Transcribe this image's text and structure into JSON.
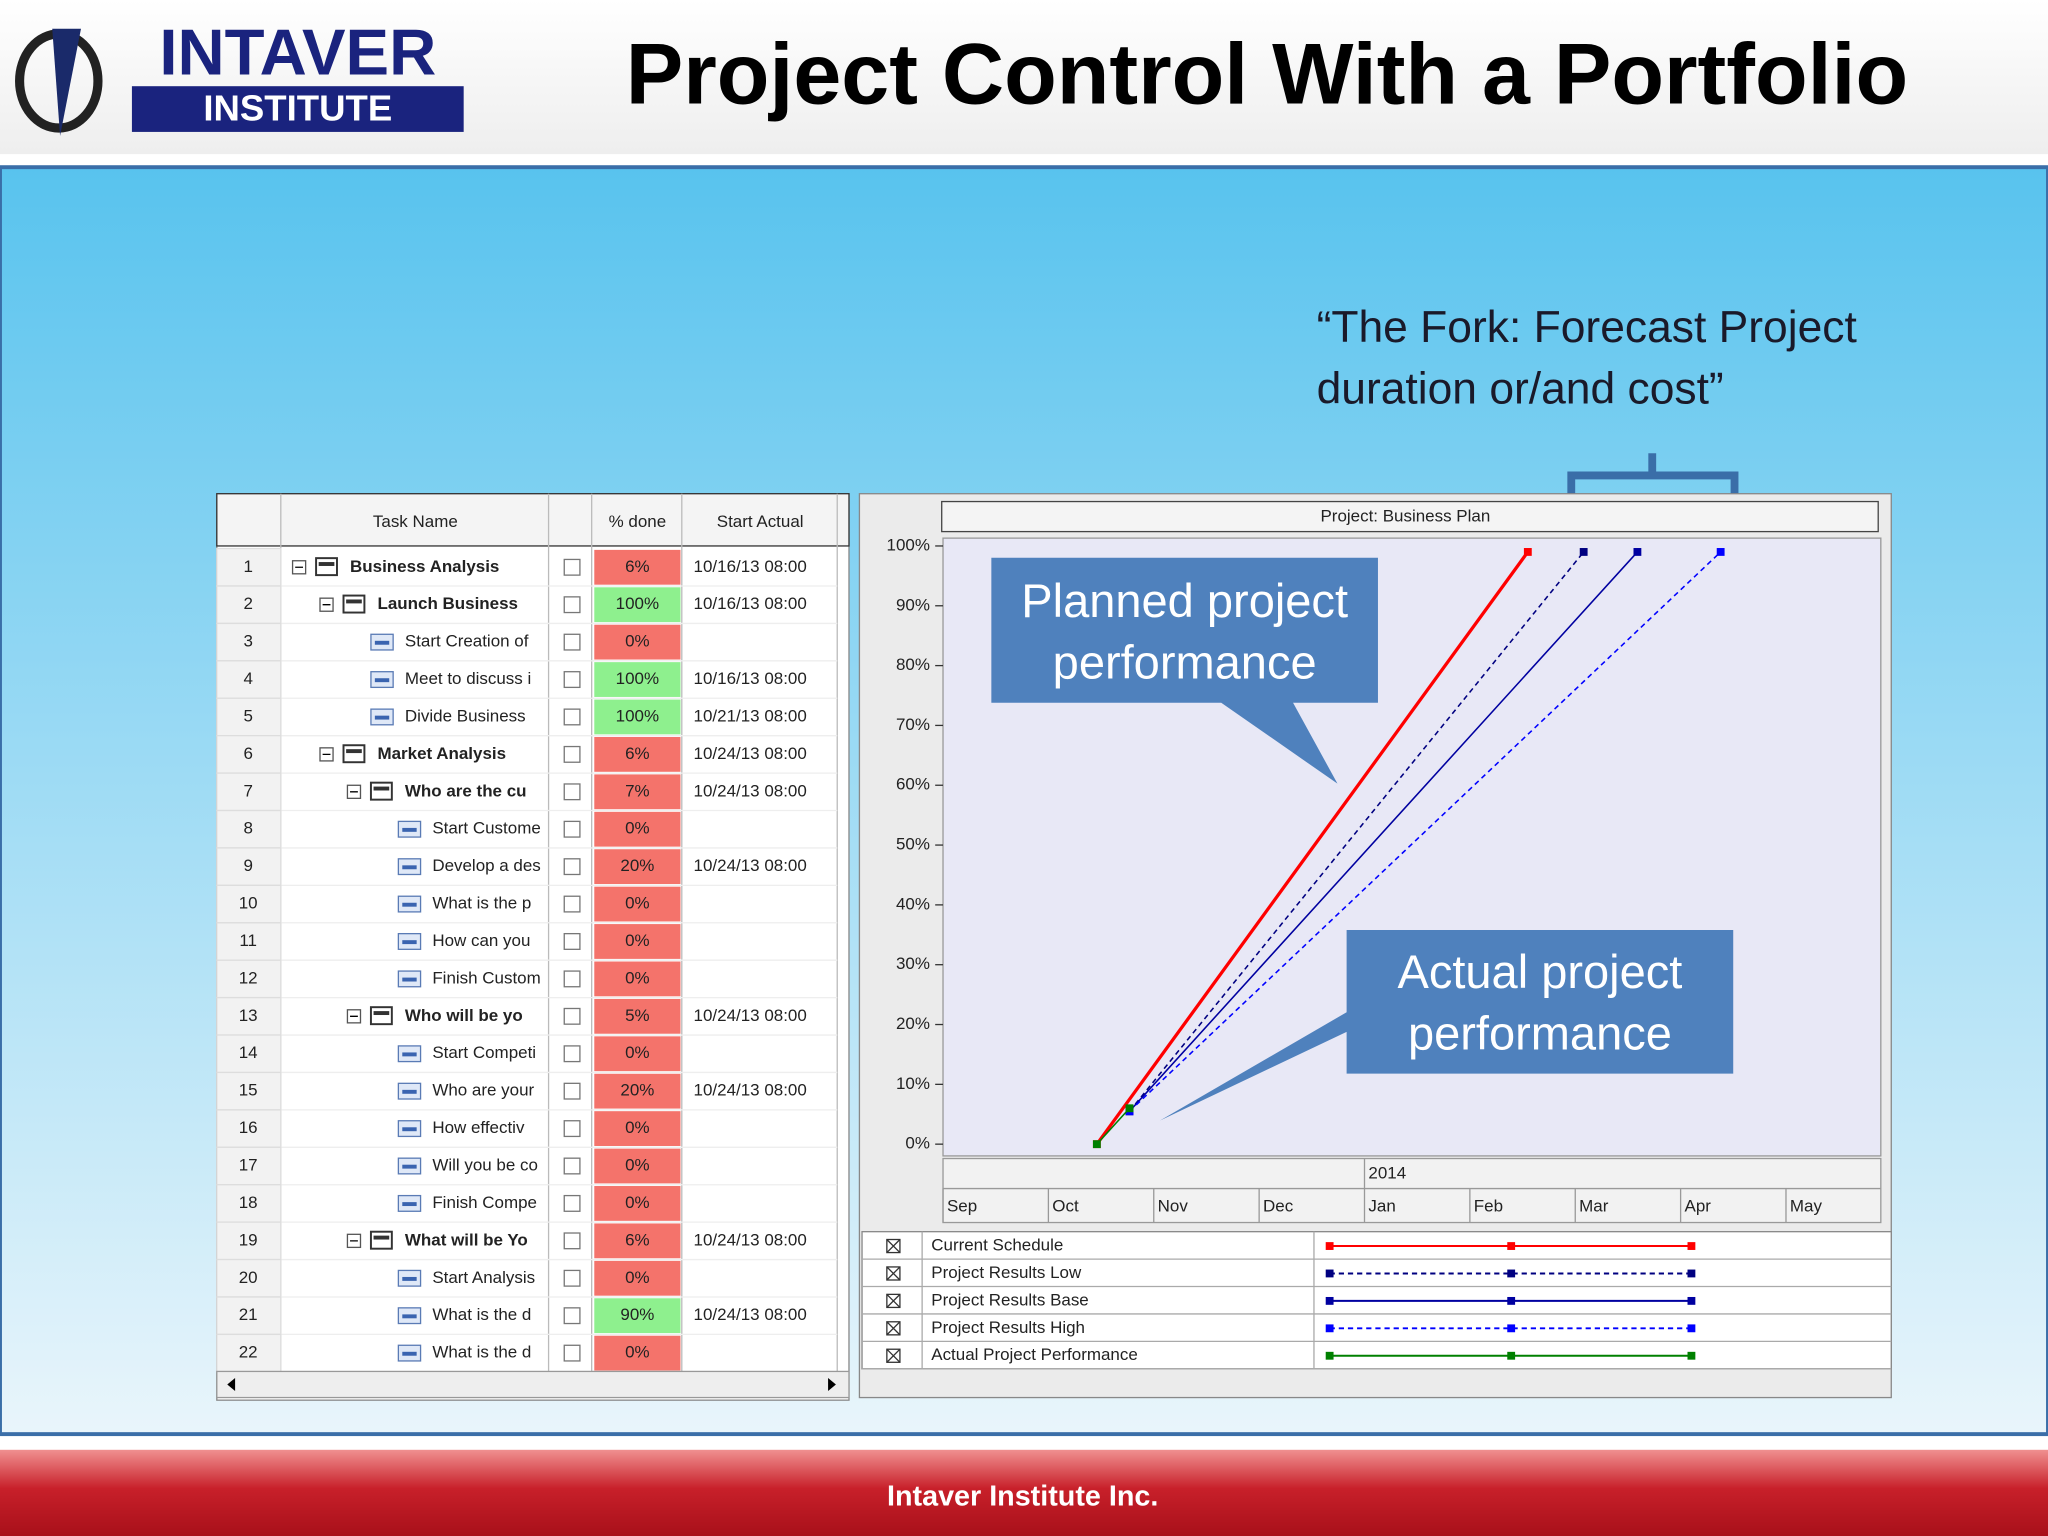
{
  "header": {
    "title": "Project Control With a Portfolio",
    "logo_top": "INTAVER",
    "logo_bottom": "INSTITUTE"
  },
  "quote": [
    "“The Fork: Forecast Project",
    "duration or/and cost”"
  ],
  "table": {
    "columns": [
      "Task Name",
      "% done",
      "Start Actual"
    ],
    "rows": [
      {
        "num": 1,
        "name": "Business Analysis",
        "done": "6%",
        "start": "10/16/13 08:00"
      },
      {
        "num": 2,
        "name": "Launch Business",
        "done": "100%",
        "start": "10/16/13 08:00"
      },
      {
        "num": 3,
        "name": "Start Creation of",
        "done": "0%"
      },
      {
        "num": 4,
        "name": "Meet to discuss i",
        "done": "100%",
        "start": "10/16/13 08:00"
      },
      {
        "num": 5,
        "name": "Divide Business",
        "done": "100%",
        "start": "10/21/13 08:00"
      },
      {
        "num": 6,
        "name": "Market Analysis",
        "done": "6%",
        "start": "10/24/13 08:00"
      },
      {
        "num": 7,
        "name": "Who are the cu",
        "done": "7%",
        "start": "10/24/13 08:00"
      },
      {
        "num": 8,
        "name": "Start Custome",
        "done": "0%"
      },
      {
        "num": 9,
        "name": "Develop a des",
        "done": "20%",
        "start": "10/24/13 08:00"
      },
      {
        "num": 10,
        "name": "What is the p",
        "done": "0%"
      },
      {
        "num": 11,
        "name": "How can you",
        "done": "0%"
      },
      {
        "num": 12,
        "name": "Finish Custom",
        "done": "0%"
      },
      {
        "num": 13,
        "name": "Who will be yo",
        "done": "5%",
        "start": "10/24/13 08:00"
      },
      {
        "num": 14,
        "name": "Start Competi",
        "done": "0%"
      },
      {
        "num": 15,
        "name": "Who are your",
        "done": "20%",
        "start": "10/24/13 08:00"
      },
      {
        "num": 16,
        "name": "How effectiv",
        "done": "0%"
      },
      {
        "num": 17,
        "name": "Will you be co",
        "done": "0%"
      },
      {
        "num": 18,
        "name": "Finish Compe",
        "done": "0%"
      },
      {
        "num": 19,
        "name": "What will be Yo",
        "done": "6%",
        "start": "10/24/13 08:00"
      },
      {
        "num": 20,
        "name": "Start Analysis",
        "done": "0%"
      },
      {
        "num": 21,
        "name": "What is the d",
        "done": "90%",
        "start": "10/24/13 08:00"
      },
      {
        "num": 22,
        "name": "What is the d",
        "done": "0%"
      }
    ]
  },
  "chart_data": {
    "type": "line",
    "title": "Project: Business Plan",
    "xlim": [
      0,
      8.9
    ],
    "xticks": [
      {
        "value": 0,
        "label": "Sep"
      },
      {
        "value": 1,
        "label": "Oct"
      },
      {
        "value": 2,
        "label": "Nov"
      },
      {
        "value": 3,
        "label": "Dec"
      },
      {
        "value": 4,
        "label": "Jan"
      },
      {
        "value": 5,
        "label": "Feb"
      },
      {
        "value": 6,
        "label": "Mar"
      },
      {
        "value": 7,
        "label": "Apr"
      },
      {
        "value": 8,
        "label": "May"
      }
    ],
    "year_label": {
      "value": 4,
      "label": "2014"
    },
    "ylim": [
      0,
      101
    ],
    "yticks": [
      {
        "value": 0,
        "label": "0%"
      },
      {
        "value": 10,
        "label": "10%"
      },
      {
        "value": 20,
        "label": "20%"
      },
      {
        "value": 30,
        "label": "30%"
      },
      {
        "value": 40,
        "label": "40%"
      },
      {
        "value": 50,
        "label": "50%"
      },
      {
        "value": 60,
        "label": "60%"
      },
      {
        "value": 70,
        "label": "70%"
      },
      {
        "value": 80,
        "label": "80%"
      },
      {
        "value": 90,
        "label": "90%"
      },
      {
        "value": 100,
        "label": "100%"
      }
    ],
    "series": [
      {
        "name": "Current Schedule",
        "color": "#ff0000",
        "dashed": false,
        "x": [
          1.46,
          5.55
        ],
        "values": [
          0,
          99
        ]
      },
      {
        "name": "Project Results Low",
        "color": "#000080",
        "dashed": true,
        "x": [
          1.77,
          6.08
        ],
        "values": [
          5.5,
          99
        ]
      },
      {
        "name": "Project Results Base",
        "color": "#0000a0",
        "dashed": false,
        "x": [
          1.77,
          6.59
        ],
        "values": [
          5.5,
          99
        ]
      },
      {
        "name": "Project Results High",
        "color": "#0000ff",
        "dashed": true,
        "x": [
          1.77,
          7.38
        ],
        "values": [
          5.5,
          99
        ]
      },
      {
        "name": "Actual Project Performance",
        "color": "#008000",
        "dashed": false,
        "x": [
          1.46,
          1.77
        ],
        "values": [
          0,
          6
        ]
      }
    ]
  },
  "callouts": {
    "planned": [
      "Planned project",
      "performance"
    ],
    "actual": [
      "Actual project",
      "performance"
    ]
  },
  "footer": "Intaver Institute Inc."
}
